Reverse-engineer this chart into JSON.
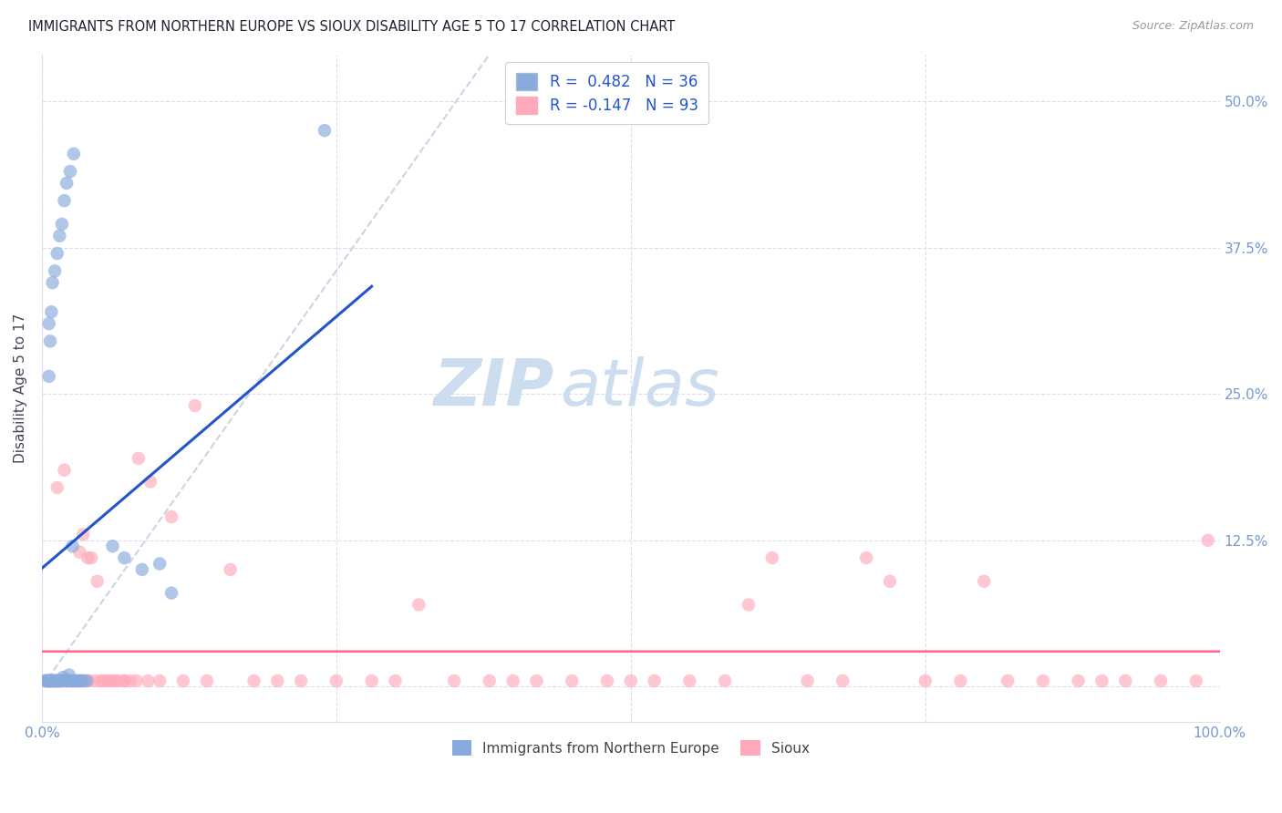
{
  "title": "IMMIGRANTS FROM NORTHERN EUROPE VS SIOUX DISABILITY AGE 5 TO 17 CORRELATION CHART",
  "source": "Source: ZipAtlas.com",
  "ylabel": "Disability Age 5 to 17",
  "xlim": [
    0,
    1.0
  ],
  "ylim": [
    -0.03,
    0.54
  ],
  "yticks": [
    0.0,
    0.125,
    0.25,
    0.375,
    0.5
  ],
  "yticklabels": [
    "",
    "12.5%",
    "25.0%",
    "37.5%",
    "50.0%"
  ],
  "color_blue": "#88AADD",
  "color_pink": "#FFAABB",
  "color_blue_line": "#2255CC",
  "color_pink_line": "#FF6688",
  "color_trend_dashed": "#BBCCDD",
  "blue_scatter_x": [
    0.003,
    0.004,
    0.005,
    0.006,
    0.007,
    0.008,
    0.009,
    0.01,
    0.011,
    0.012,
    0.013,
    0.014,
    0.015,
    0.016,
    0.017,
    0.018,
    0.02,
    0.021,
    0.022,
    0.023,
    0.025,
    0.026,
    0.027,
    0.028,
    0.03,
    0.032,
    0.033,
    0.035,
    0.038,
    0.06,
    0.07,
    0.085,
    0.1,
    0.11,
    0.24,
    0.006
  ],
  "blue_scatter_y": [
    0.005,
    0.005,
    0.005,
    0.005,
    0.005,
    0.005,
    0.005,
    0.005,
    0.005,
    0.005,
    0.005,
    0.005,
    0.005,
    0.005,
    0.005,
    0.008,
    0.005,
    0.005,
    0.005,
    0.01,
    0.005,
    0.12,
    0.005,
    0.005,
    0.005,
    0.005,
    0.005,
    0.005,
    0.005,
    0.12,
    0.11,
    0.1,
    0.105,
    0.08,
    0.475,
    0.31
  ],
  "blue_scatter_x2": [
    0.006,
    0.007,
    0.008,
    0.009,
    0.011,
    0.013,
    0.015,
    0.017,
    0.019,
    0.021,
    0.024,
    0.027
  ],
  "blue_scatter_y2": [
    0.265,
    0.295,
    0.32,
    0.345,
    0.355,
    0.37,
    0.385,
    0.395,
    0.415,
    0.43,
    0.44,
    0.455
  ],
  "pink_scatter_x": [
    0.003,
    0.004,
    0.005,
    0.006,
    0.007,
    0.008,
    0.009,
    0.01,
    0.011,
    0.012,
    0.013,
    0.015,
    0.016,
    0.018,
    0.02,
    0.022,
    0.025,
    0.028,
    0.03,
    0.032,
    0.035,
    0.038,
    0.04,
    0.045,
    0.05,
    0.055,
    0.06,
    0.065,
    0.07,
    0.075,
    0.08,
    0.09,
    0.1,
    0.12,
    0.14,
    0.16,
    0.18,
    0.2,
    0.22,
    0.25,
    0.28,
    0.3,
    0.32,
    0.35,
    0.38,
    0.4,
    0.42,
    0.45,
    0.48,
    0.5,
    0.52,
    0.55,
    0.58,
    0.6,
    0.62,
    0.65,
    0.68,
    0.7,
    0.72,
    0.75,
    0.78,
    0.8,
    0.82,
    0.85,
    0.88,
    0.9,
    0.92,
    0.95,
    0.98,
    0.99,
    0.004,
    0.006,
    0.008,
    0.01,
    0.013,
    0.016,
    0.019,
    0.022,
    0.025,
    0.028,
    0.032,
    0.035,
    0.039,
    0.042,
    0.047,
    0.052,
    0.057,
    0.062,
    0.07,
    0.082,
    0.092,
    0.11,
    0.13
  ],
  "pink_scatter_y": [
    0.005,
    0.005,
    0.005,
    0.005,
    0.005,
    0.005,
    0.005,
    0.005,
    0.005,
    0.005,
    0.005,
    0.005,
    0.005,
    0.005,
    0.005,
    0.005,
    0.005,
    0.005,
    0.005,
    0.005,
    0.005,
    0.005,
    0.005,
    0.005,
    0.005,
    0.005,
    0.005,
    0.005,
    0.005,
    0.005,
    0.005,
    0.005,
    0.005,
    0.005,
    0.005,
    0.1,
    0.005,
    0.005,
    0.005,
    0.005,
    0.005,
    0.005,
    0.07,
    0.005,
    0.005,
    0.005,
    0.005,
    0.005,
    0.005,
    0.005,
    0.005,
    0.005,
    0.005,
    0.07,
    0.11,
    0.005,
    0.005,
    0.11,
    0.09,
    0.005,
    0.005,
    0.09,
    0.005,
    0.005,
    0.005,
    0.005,
    0.005,
    0.005,
    0.005,
    0.125,
    0.005,
    0.005,
    0.005,
    0.005,
    0.17,
    0.005,
    0.185,
    0.005,
    0.005,
    0.005,
    0.115,
    0.13,
    0.11,
    0.11,
    0.09,
    0.005,
    0.005,
    0.005,
    0.005,
    0.195,
    0.175,
    0.145,
    0.24
  ],
  "watermark_zip": "ZIP",
  "watermark_atlas": "atlas",
  "watermark_color": "#CCDDEF",
  "grid_color": "#DDDDEE",
  "tick_color": "#7799CC",
  "legend_label_1": "R =  0.482   N = 36",
  "legend_label_2": "R = -0.147   N = 93",
  "bottom_legend_1": "Immigrants from Northern Europe",
  "bottom_legend_2": "Sioux"
}
